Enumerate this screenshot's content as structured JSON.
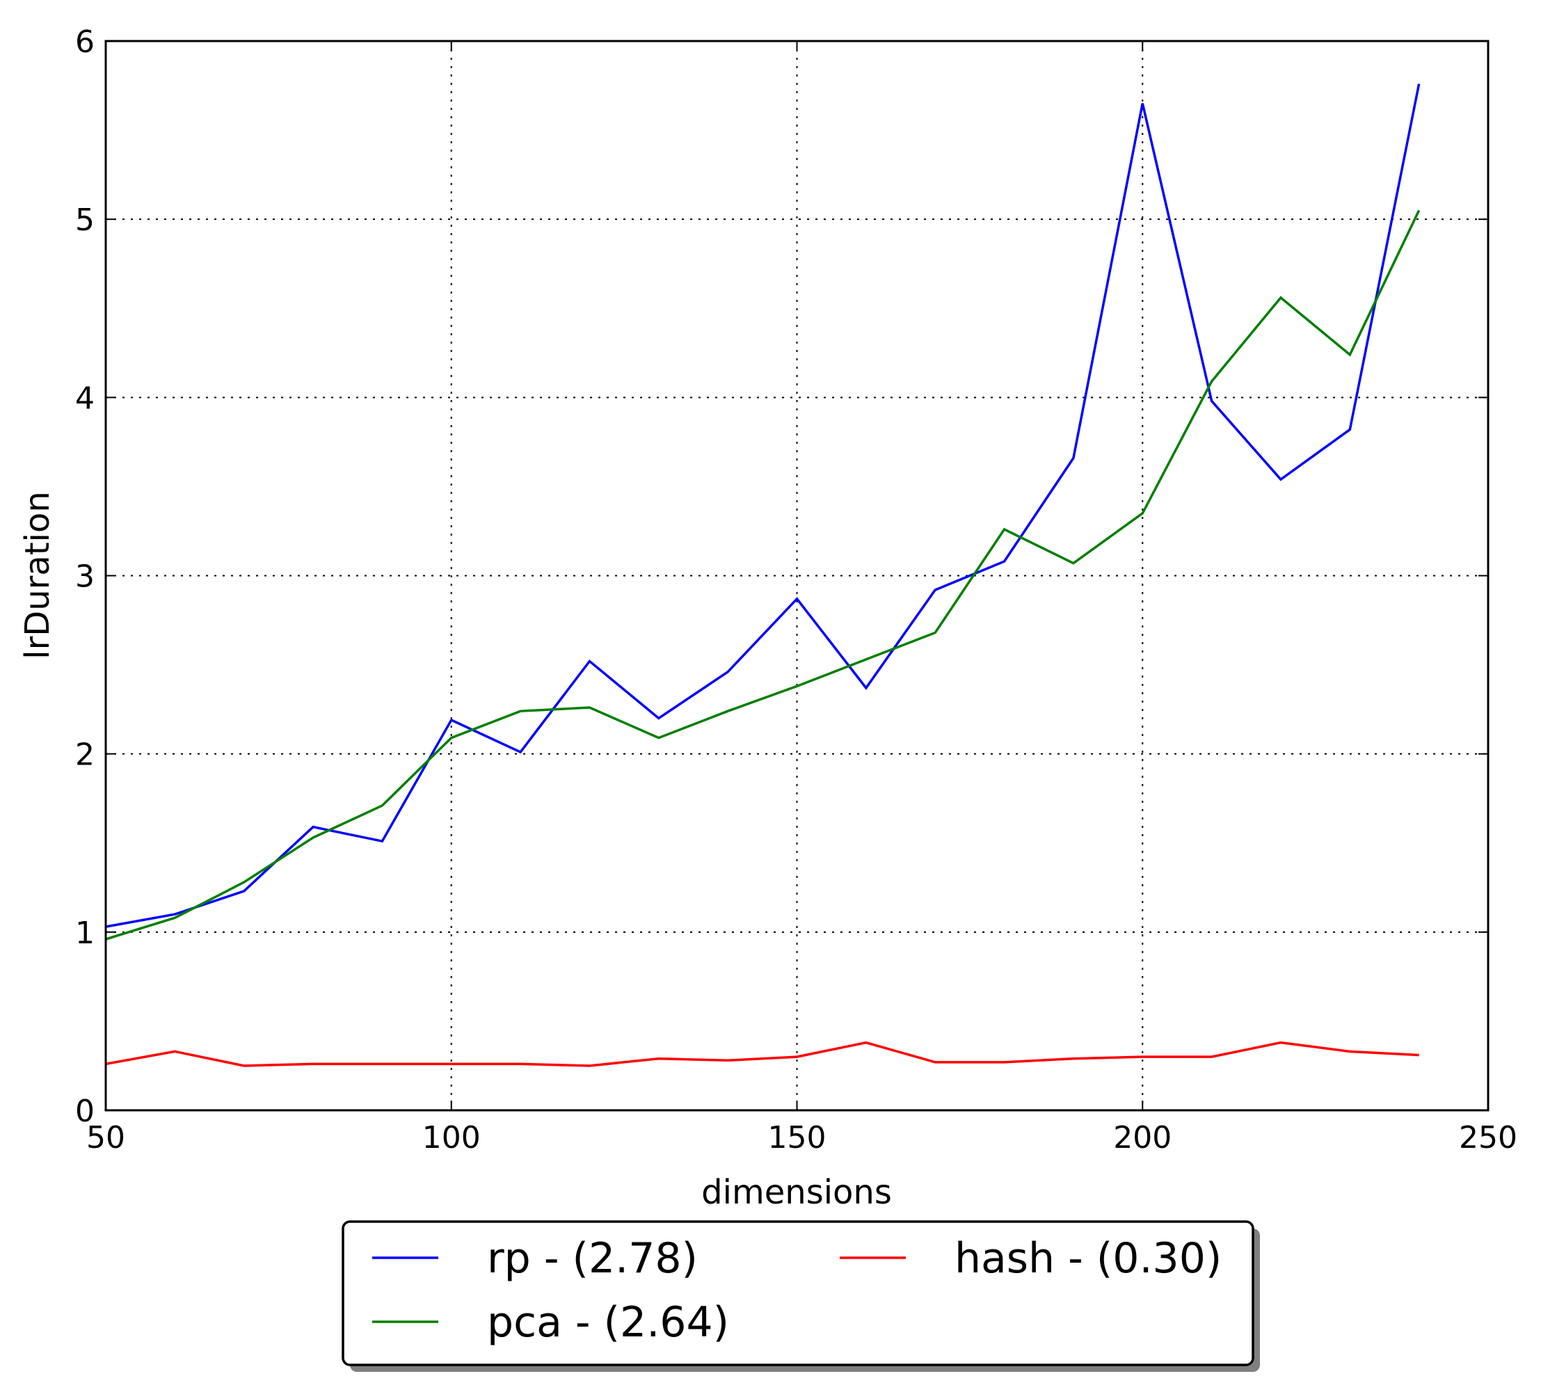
{
  "chart_data": {
    "type": "line",
    "xlabel": "dimensions",
    "ylabel": "lrDuration",
    "xlim": [
      50,
      250
    ],
    "ylim": [
      0,
      6
    ],
    "xticks": [
      50,
      100,
      150,
      200,
      250
    ],
    "yticks": [
      0,
      1,
      2,
      3,
      4,
      5,
      6
    ],
    "xtick_labels": [
      "50",
      "100",
      "150",
      "200",
      "250"
    ],
    "ytick_labels": [
      "0",
      "1",
      "2",
      "3",
      "4",
      "5",
      "6"
    ],
    "grid": true,
    "legend_position": "below-center",
    "legend_columns": 2,
    "x": [
      50,
      60,
      70,
      80,
      90,
      100,
      110,
      120,
      130,
      140,
      150,
      160,
      170,
      180,
      190,
      200,
      210,
      220,
      230,
      240
    ],
    "series": [
      {
        "name": "rp - (2.78)",
        "color": "#0000ff",
        "values": [
          1.03,
          1.1,
          1.23,
          1.59,
          1.51,
          2.19,
          2.01,
          2.52,
          2.2,
          2.46,
          2.87,
          2.37,
          2.92,
          3.08,
          3.66,
          5.65,
          3.98,
          3.54,
          3.82,
          5.76
        ]
      },
      {
        "name": "pca - (2.64)",
        "color": "#007f00",
        "values": [
          0.96,
          1.08,
          1.28,
          1.53,
          1.71,
          2.09,
          2.24,
          2.26,
          2.09,
          2.24,
          2.38,
          2.53,
          2.68,
          3.26,
          3.07,
          3.35,
          4.09,
          4.56,
          4.24,
          5.05
        ]
      },
      {
        "name": "hash - (0.30)",
        "color": "#ff0000",
        "values": [
          0.26,
          0.33,
          0.25,
          0.26,
          0.26,
          0.26,
          0.26,
          0.25,
          0.29,
          0.28,
          0.3,
          0.38,
          0.27,
          0.27,
          0.29,
          0.3,
          0.3,
          0.38,
          0.33,
          0.31
        ]
      }
    ]
  }
}
